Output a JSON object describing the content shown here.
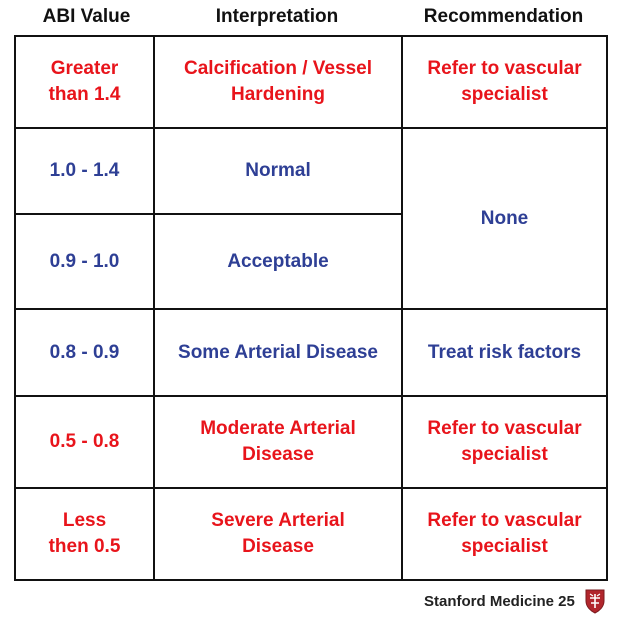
{
  "headers": {
    "abi_value": "ABI Value",
    "interpretation": "Interpretation",
    "recommendation": "Recommendation"
  },
  "rows": [
    {
      "abi": [
        "Greater",
        "than 1.4"
      ],
      "interpretation": [
        "Calcification / Vessel",
        "Hardening"
      ],
      "recommendation": [
        "Refer to vascular",
        "specialist"
      ],
      "color": "red"
    },
    {
      "abi": [
        "1.0 - 1.4"
      ],
      "interpretation": [
        "Normal"
      ],
      "color": "blue"
    },
    {
      "abi": [
        "0.9 - 1.0"
      ],
      "interpretation": [
        "Acceptable"
      ],
      "color": "blue"
    },
    {
      "abi": [
        "0.8 - 0.9"
      ],
      "interpretation": [
        "Some Arterial Disease"
      ],
      "recommendation": [
        "Treat risk factors"
      ],
      "color": "blue"
    },
    {
      "abi": [
        "0.5 - 0.8"
      ],
      "interpretation": [
        "Moderate Arterial",
        "Disease"
      ],
      "recommendation": [
        "Refer to vascular",
        "specialist"
      ],
      "color": "red"
    },
    {
      "abi": [
        "Less",
        "then 0.5"
      ],
      "interpretation": [
        "Severe Arterial",
        "Disease"
      ],
      "recommendation": [
        "Refer to vascular",
        "specialist"
      ],
      "color": "red"
    }
  ],
  "merged_recommendation": [
    "None"
  ],
  "footer": {
    "text": "Stanford Medicine 25",
    "logo_icon": "stanford-shield-icon"
  },
  "colors": {
    "red": "#e8141b",
    "blue": "#2e3f95",
    "border": "#111111"
  }
}
